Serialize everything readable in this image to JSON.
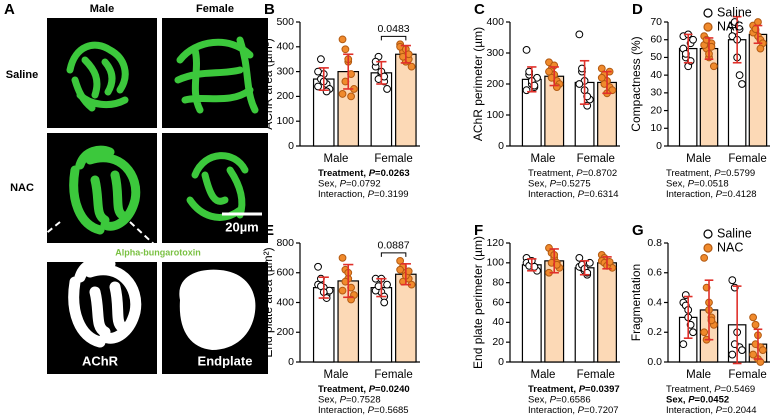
{
  "panel_a": {
    "letter": "A",
    "columns": [
      "Male",
      "Female"
    ],
    "rows": [
      "Saline",
      "NAC"
    ],
    "scale_bar": "20µm",
    "stain": "Alpha-bungarotoxin",
    "masks": [
      "AChR",
      "Endplate"
    ]
  },
  "chart_data": [
    {
      "type": "bar",
      "panel": "B",
      "ylabel": "AChR area (µm²)",
      "categories": [
        "Male",
        "Female"
      ],
      "ylim": [
        0,
        500
      ],
      "yticks": [
        0,
        100,
        200,
        300,
        400,
        500
      ],
      "error_color": "#e0302a",
      "series": [
        {
          "color": "#ffffff",
          "bar_color": "#ffffff",
          "values": [
            270,
            295
          ],
          "errors": [
            45,
            45
          ],
          "points": [
            [
              240,
              350,
              290,
              250,
              230,
              300,
              270,
              260,
              220
            ],
            [
              320,
              360,
              290,
              260,
              230,
              340,
              270,
              300,
              280
            ]
          ]
        },
        {
          "color": "#f08a2c",
          "bar_color": "#fcd9b6",
          "values": [
            300,
            370
          ],
          "errors": [
            70,
            35
          ],
          "points": [
            [
              430,
              390,
              340,
              290,
              230,
              210,
              260,
              350,
              200
            ],
            [
              410,
              380,
              340,
              350,
              320,
              400,
              360,
              390,
              370
            ]
          ]
        }
      ],
      "comparison": {
        "between": "Female",
        "p": 0.0483
      },
      "stats": [
        {
          "text": "Treatment, P=0.0263",
          "bold": true
        },
        {
          "text": "Sex, P=0.0792",
          "bold": false
        },
        {
          "text": "Interaction, P=0.3199",
          "bold": false
        }
      ]
    },
    {
      "type": "bar",
      "panel": "C",
      "ylabel": "AChR perimeter (µm)",
      "categories": [
        "Male",
        "Female"
      ],
      "ylim": [
        0,
        400
      ],
      "yticks": [
        0,
        100,
        200,
        300,
        400
      ],
      "error_color": "#e0302a",
      "series": [
        {
          "color": "#ffffff",
          "bar_color": "#ffffff",
          "values": [
            215,
            205
          ],
          "errors": [
            40,
            70
          ],
          "points": [
            [
              310,
              230,
              200,
              190,
              220,
              180,
              240,
              210,
              195
            ],
            [
              360,
              240,
              210,
              130,
              150,
              200,
              250,
              180,
              160
            ]
          ]
        },
        {
          "color": "#f08a2c",
          "bar_color": "#fcd9b6",
          "values": [
            225,
            205
          ],
          "errors": [
            30,
            35
          ],
          "points": [
            [
              270,
              250,
              230,
              210,
              200,
              240,
              220,
              260,
              190
            ],
            [
              250,
              230,
              210,
              190,
              180,
              220,
              200,
              170,
              240
            ]
          ]
        }
      ],
      "stats": [
        {
          "text": "Treatment, P=0.8702",
          "bold": false
        },
        {
          "text": "Sex, P=0.5275",
          "bold": false
        },
        {
          "text": "Interaction, P=0.6314",
          "bold": false
        }
      ]
    },
    {
      "type": "bar",
      "panel": "D",
      "ylabel": "Compactness (%)",
      "categories": [
        "Male",
        "Female"
      ],
      "ylim": [
        0,
        70
      ],
      "yticks": [
        0,
        10,
        20,
        30,
        40,
        50,
        60,
        70
      ],
      "error_color": "#e0302a",
      "legend": "top-right",
      "series": [
        {
          "name": "Saline",
          "color": "#ffffff",
          "bar_color": "#ffffff",
          "values": [
            55,
            60
          ],
          "errors": [
            8,
            13
          ],
          "points": [
            [
              62,
              50,
              45,
              58,
              60,
              55,
              52,
              63,
              48
            ],
            [
              68,
              65,
              50,
              40,
              35,
              62,
              70,
              60,
              66
            ]
          ]
        },
        {
          "name": "NAC",
          "color": "#f08a2c",
          "bar_color": "#fcd9b6",
          "values": [
            55,
            63
          ],
          "errors": [
            6,
            5
          ],
          "points": [
            [
              62,
              55,
              50,
              58,
              45,
              57,
              60,
              52,
              56
            ],
            [
              68,
              65,
              62,
              60,
              58,
              64,
              66,
              70,
              55
            ]
          ]
        }
      ],
      "stats": [
        {
          "text": "Treatment, P=0.5799",
          "bold": false
        },
        {
          "text": "Sex, P=0.0518",
          "bold": false
        },
        {
          "text": "Interaction, P=0.4128",
          "bold": false
        }
      ]
    },
    {
      "type": "bar",
      "panel": "E",
      "ylabel": "End plate area (µm²)",
      "categories": [
        "Male",
        "Female"
      ],
      "ylim": [
        0,
        800
      ],
      "yticks": [
        0,
        200,
        400,
        600,
        800
      ],
      "error_color": "#e0302a",
      "series": [
        {
          "color": "#ffffff",
          "bar_color": "#ffffff",
          "values": [
            500,
            500
          ],
          "errors": [
            70,
            60
          ],
          "points": [
            [
              640,
              560,
              500,
              450,
              480,
              520,
              510,
              470,
              430
            ],
            [
              560,
              500,
              470,
              440,
              520,
              480,
              510,
              560,
              400
            ]
          ]
        },
        {
          "color": "#f08a2c",
          "bar_color": "#fcd9b6",
          "values": [
            545,
            590
          ],
          "errors": [
            110,
            70
          ],
          "points": [
            [
              700,
              620,
              560,
              500,
              450,
              480,
              540,
              600,
              420
            ],
            [
              680,
              640,
              600,
              560,
              520,
              620,
              540,
              580,
              610
            ]
          ]
        }
      ],
      "comparison": {
        "between": "Female",
        "p": 0.0887
      },
      "stats": [
        {
          "text": "Treatment, P=0.0240",
          "bold": true
        },
        {
          "text": "Sex, P=0.7528",
          "bold": false
        },
        {
          "text": "Interaction, P=0.5685",
          "bold": false
        }
      ]
    },
    {
      "type": "bar",
      "panel": "F",
      "ylabel": "End plate perimeter (µm)",
      "categories": [
        "Male",
        "Female"
      ],
      "ylim": [
        0,
        120
      ],
      "yticks": [
        0,
        20,
        40,
        60,
        80,
        100,
        120
      ],
      "error_color": "#e0302a",
      "series": [
        {
          "color": "#ffffff",
          "bar_color": "#ffffff",
          "values": [
            98,
            95
          ],
          "errors": [
            6,
            7
          ],
          "points": [
            [
              105,
              100,
              98,
              95,
              92,
              100,
              97,
              102,
              96
            ],
            [
              105,
              95,
              92,
              88,
              100,
              96,
              98,
              94,
              90
            ]
          ]
        },
        {
          "color": "#f08a2c",
          "bar_color": "#fcd9b6",
          "values": [
            102,
            100
          ],
          "errors": [
            12,
            6
          ],
          "points": [
            [
              115,
              110,
              105,
              100,
              95,
              90,
              100,
              108,
              98
            ],
            [
              108,
              105,
              100,
              98,
              95,
              102,
              100,
              97,
              101
            ]
          ]
        }
      ],
      "stats": [
        {
          "text": "Treatment, P=0.0397",
          "bold": true
        },
        {
          "text": "Sex, P=0.6586",
          "bold": false
        },
        {
          "text": "Interaction, P=0.7207",
          "bold": false
        }
      ]
    },
    {
      "type": "bar",
      "panel": "G",
      "ylabel": "Fragmentation",
      "categories": [
        "Male",
        "Female"
      ],
      "ylim": [
        0,
        0.8
      ],
      "yticks": [
        {
          "value": 0,
          "label": "0.0"
        },
        0.2,
        0.4,
        0.6,
        0.8
      ],
      "error_color": "#e0302a",
      "legend": "top-right",
      "series": [
        {
          "name": "Saline",
          "color": "#ffffff",
          "bar_color": "#ffffff",
          "values": [
            0.3,
            0.25
          ],
          "errors": [
            0.14,
            0.26
          ],
          "points": [
            [
              0.4,
              0.38,
              0.3,
              0.25,
              0.2,
              0.12,
              0.45,
              0.35
            ],
            [
              0.55,
              0.5,
              0.2,
              0.1,
              0.08,
              0.05,
              0.12
            ]
          ]
        },
        {
          "name": "NAC",
          "color": "#f08a2c",
          "bar_color": "#fcd9b6",
          "values": [
            0.35,
            0.12
          ],
          "errors": [
            0.2,
            0.1
          ],
          "points": [
            [
              0.7,
              0.5,
              0.4,
              0.3,
              0.25,
              0.2,
              0.15,
              0.35,
              0.28
            ],
            [
              0.3,
              0.25,
              0.18,
              0.1,
              0.08,
              0.05,
              0.12,
              0.02,
              0
            ]
          ]
        }
      ],
      "stats": [
        {
          "text": "Treatment, P=0.5469",
          "bold": false
        },
        {
          "text": "Sex, P=0.0452",
          "bold": true
        },
        {
          "text": "Interaction, P=0.2044",
          "bold": false
        }
      ]
    }
  ]
}
